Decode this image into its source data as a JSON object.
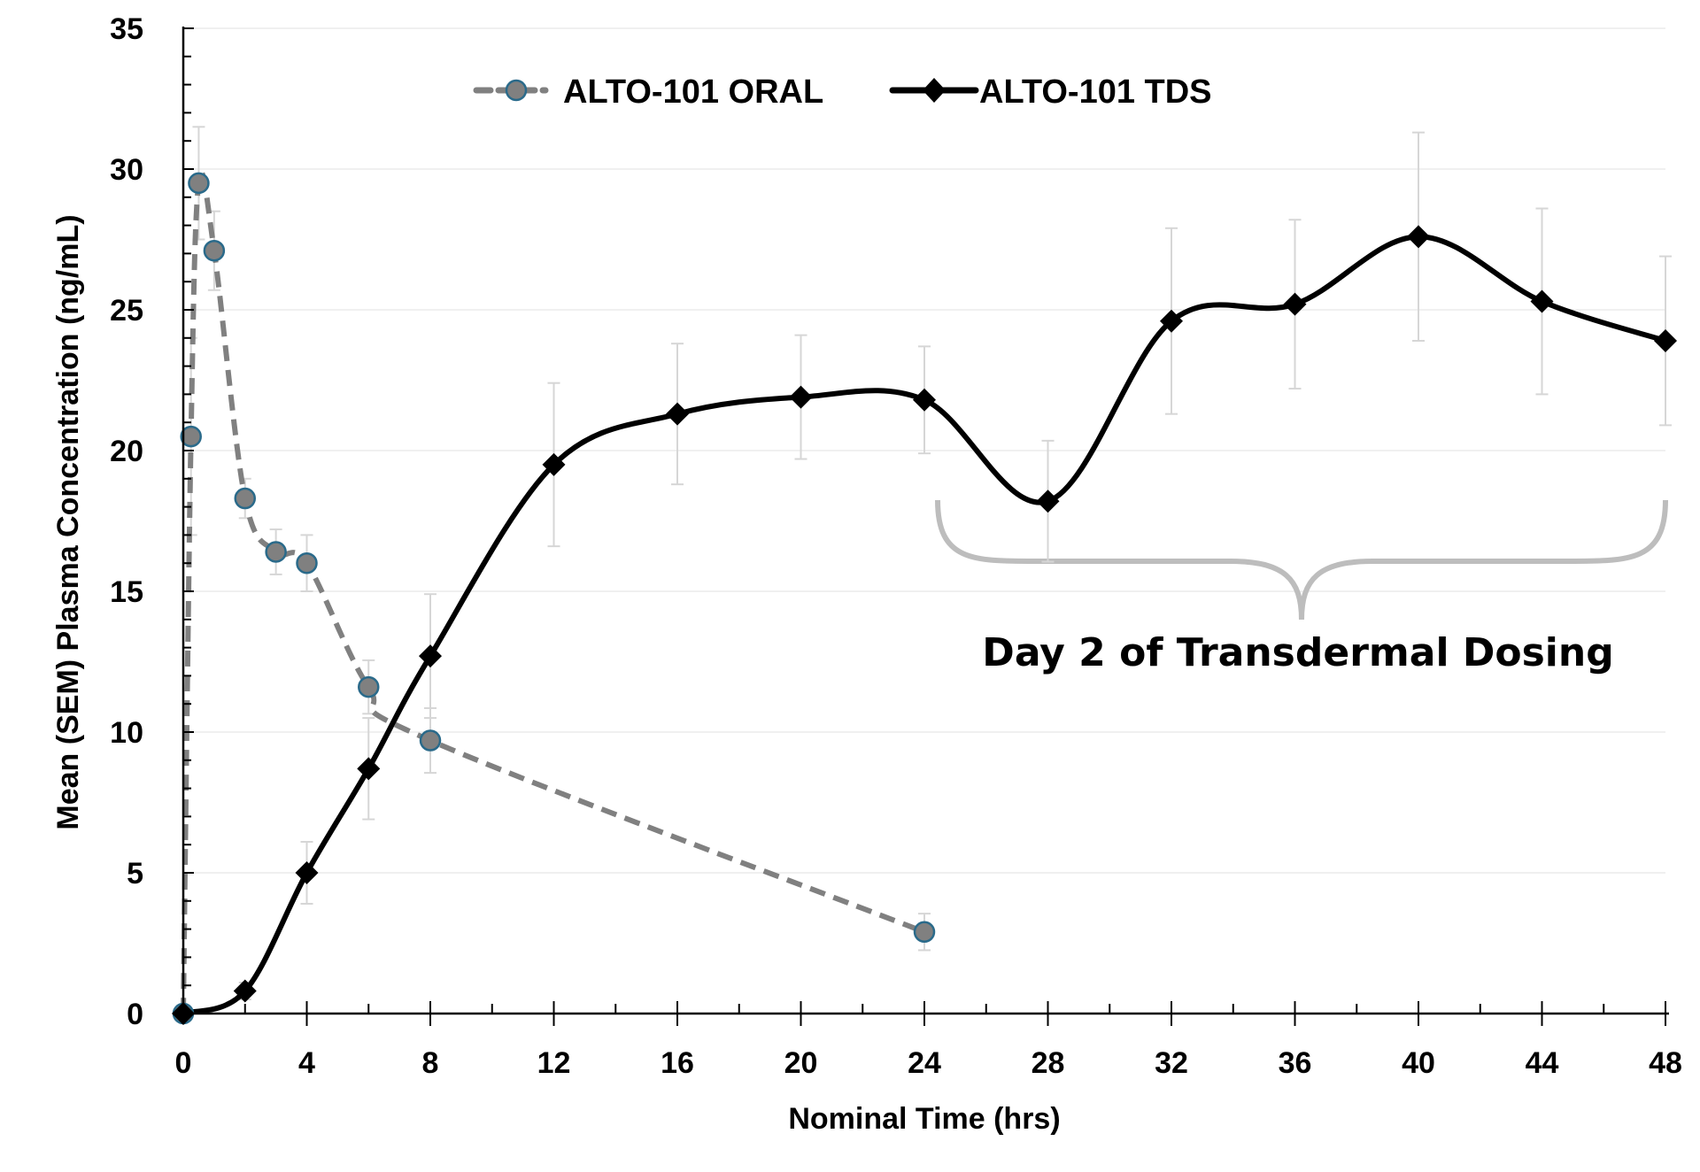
{
  "chart_data": {
    "type": "line",
    "xlabel": "Nominal Time (hrs)",
    "ylabel": "Mean (SEM) Plasma Concentration (ng/mL)",
    "xlim": [
      0,
      48
    ],
    "ylim": [
      0,
      35
    ],
    "xticks": [
      0,
      4,
      8,
      12,
      16,
      20,
      24,
      28,
      32,
      36,
      40,
      44,
      48
    ],
    "yticks": [
      0,
      5,
      10,
      15,
      20,
      25,
      30,
      35
    ],
    "grid": "horizontal",
    "legend_position": "top-center",
    "series": [
      {
        "name": "ALTO-101 ORAL",
        "style": "dashed",
        "color": "#808080",
        "marker": "circle",
        "marker_edge": "#2a6a8a",
        "x": [
          0,
          0.25,
          0.5,
          1,
          2,
          3,
          4,
          6,
          8,
          24
        ],
        "y": [
          0,
          20.5,
          29.5,
          27.1,
          18.3,
          16.4,
          16.0,
          11.6,
          9.7,
          2.9
        ],
        "sem": [
          0,
          3.5,
          2.0,
          1.4,
          0.7,
          0.8,
          1.0,
          0.95,
          1.15,
          0.65
        ]
      },
      {
        "name": "ALTO-101 TDS",
        "style": "solid",
        "color": "#000000",
        "marker": "diamond",
        "x": [
          0,
          2,
          4,
          6,
          8,
          12,
          16,
          20,
          24,
          28,
          32,
          36,
          40,
          44,
          48
        ],
        "y": [
          0,
          0.8,
          5.0,
          8.7,
          12.7,
          19.5,
          21.3,
          21.9,
          21.8,
          18.2,
          24.6,
          25.2,
          27.6,
          25.3,
          23.9
        ],
        "sem": [
          0,
          0.3,
          1.1,
          1.8,
          2.2,
          2.9,
          2.5,
          2.2,
          1.9,
          2.15,
          3.3,
          3.0,
          3.7,
          3.3,
          3.0
        ]
      }
    ],
    "annotations": [
      {
        "text": "Day 2 of Transdermal Dosing",
        "x_range": [
          24,
          48
        ],
        "type": "brace"
      }
    ]
  }
}
